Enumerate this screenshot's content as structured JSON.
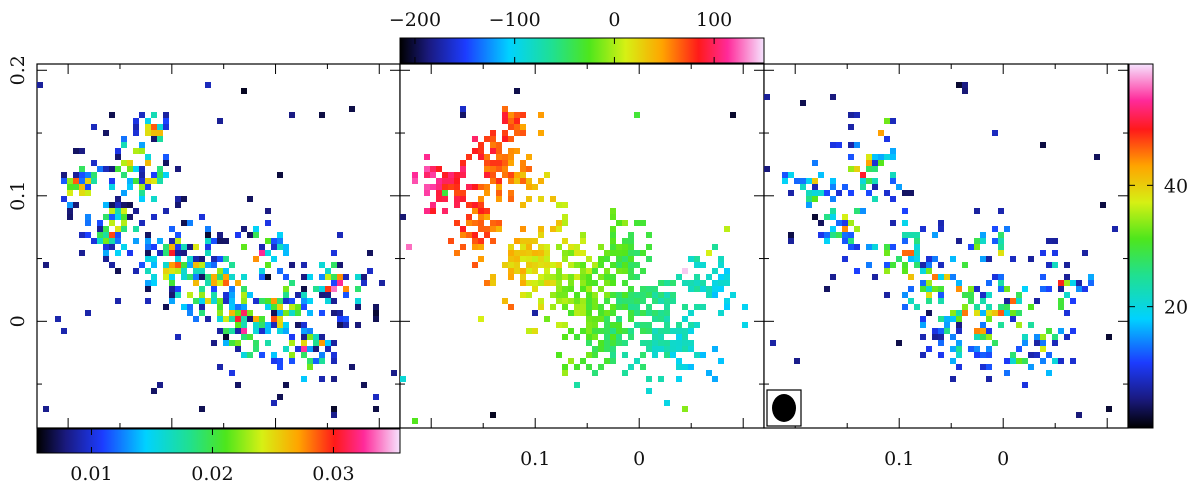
{
  "chart_data": [
    {
      "type": "heatmap",
      "panel": "left",
      "xlabel": "",
      "ylabel": "",
      "y_ticks": [
        "0.2",
        "0.1",
        "0"
      ],
      "y_tick_values": [
        0.2,
        0.1,
        0
      ],
      "ylim": [
        -0.085,
        0.205
      ],
      "xlim": [
        0.23,
        -0.12
      ],
      "colorbar": {
        "orientation": "horizontal",
        "placement": "bottom",
        "ticks": [
          "0.01",
          "0.02",
          "0.03"
        ],
        "tick_values": [
          0.01,
          0.02,
          0.03
        ],
        "range": [
          0.0055,
          0.0355
        ]
      }
    },
    {
      "type": "heatmap",
      "panel": "middle",
      "xlabel": "",
      "ylabel": "",
      "x_ticks": [
        "0.1",
        "0"
      ],
      "x_tick_values": [
        0.1,
        0
      ],
      "xlim": [
        0.23,
        -0.12
      ],
      "ylim": [
        -0.085,
        0.205
      ],
      "colorbar": {
        "orientation": "horizontal",
        "placement": "top",
        "ticks": [
          "−200",
          "−100",
          "0",
          "100"
        ],
        "tick_values": [
          -200,
          -100,
          0,
          100
        ],
        "range": [
          -215,
          150
        ]
      }
    },
    {
      "type": "heatmap",
      "panel": "right",
      "xlabel": "",
      "ylabel": "",
      "x_ticks": [
        "0.1",
        "0"
      ],
      "x_tick_values": [
        0.1,
        0
      ],
      "xlim": [
        0.23,
        -0.12
      ],
      "ylim": [
        -0.085,
        0.205
      ],
      "beam": "filled ellipse, bottom-left",
      "colorbar": {
        "orientation": "vertical",
        "placement": "right",
        "ticks": [
          "20",
          "40"
        ],
        "tick_values": [
          20,
          40
        ],
        "range": [
          0,
          60
        ]
      }
    }
  ]
}
